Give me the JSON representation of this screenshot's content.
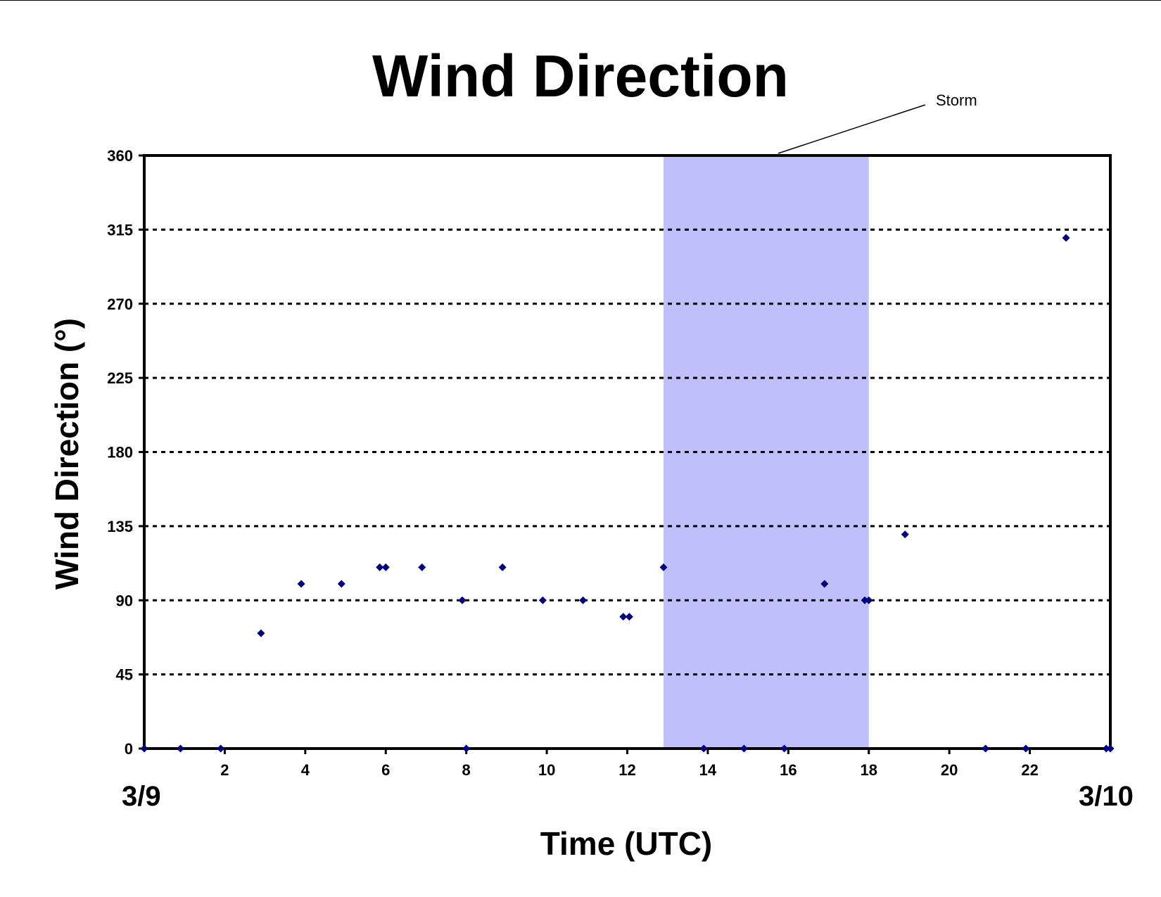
{
  "chart_data": {
    "type": "scatter",
    "title": "Wind Direction",
    "xlabel": "Time (UTC)",
    "ylabel": "Wind Direction (°)",
    "xlim": [
      0,
      24
    ],
    "ylim": [
      0,
      360
    ],
    "x_ticks": [
      2,
      4,
      6,
      8,
      10,
      12,
      14,
      16,
      18,
      20,
      22
    ],
    "y_ticks": [
      0,
      45,
      90,
      135,
      180,
      225,
      270,
      315,
      360
    ],
    "grid": "horizontal dotted",
    "date_labels": {
      "start": "3/9",
      "end": "3/10"
    },
    "shaded_region": {
      "x_start": 12.9,
      "x_end": 18.0,
      "label": "Storm",
      "color": "#bfbffb"
    },
    "marker_color": "#000080",
    "points": [
      {
        "x": 0.0,
        "y": 0
      },
      {
        "x": 0.9,
        "y": 0
      },
      {
        "x": 1.9,
        "y": 0
      },
      {
        "x": 2.9,
        "y": 70
      },
      {
        "x": 3.9,
        "y": 100
      },
      {
        "x": 4.9,
        "y": 100
      },
      {
        "x": 5.85,
        "y": 110
      },
      {
        "x": 6.0,
        "y": 110
      },
      {
        "x": 6.9,
        "y": 110
      },
      {
        "x": 7.9,
        "y": 90
      },
      {
        "x": 8.0,
        "y": 0
      },
      {
        "x": 8.9,
        "y": 110
      },
      {
        "x": 9.9,
        "y": 90
      },
      {
        "x": 10.9,
        "y": 90
      },
      {
        "x": 11.9,
        "y": 80
      },
      {
        "x": 12.05,
        "y": 80
      },
      {
        "x": 12.9,
        "y": 110
      },
      {
        "x": 13.9,
        "y": 0
      },
      {
        "x": 14.9,
        "y": 0
      },
      {
        "x": 15.9,
        "y": 0
      },
      {
        "x": 16.9,
        "y": 100
      },
      {
        "x": 17.9,
        "y": 90
      },
      {
        "x": 18.0,
        "y": 90
      },
      {
        "x": 18.9,
        "y": 130
      },
      {
        "x": 20.9,
        "y": 0
      },
      {
        "x": 21.9,
        "y": 0
      },
      {
        "x": 22.9,
        "y": 310
      },
      {
        "x": 23.9,
        "y": 0
      },
      {
        "x": 24.0,
        "y": 0
      }
    ]
  }
}
